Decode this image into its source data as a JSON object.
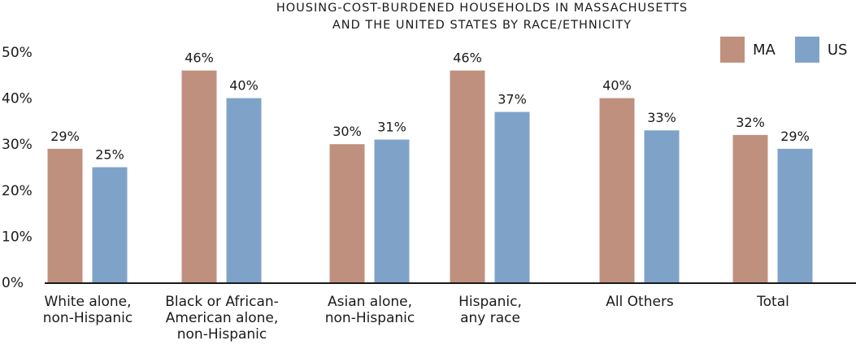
{
  "chart_data": {
    "type": "bar",
    "title_lines": [
      "HOUSING-COST-BURDENED HOUSEHOLDS IN MASSACHUSETTS",
      "AND THE UNITED STATES BY RACE/ETHNICITY"
    ],
    "categories": [
      [
        "White alone,",
        "non-Hispanic"
      ],
      [
        "Black or African-",
        "American alone,",
        "non-Hispanic"
      ],
      [
        "Asian alone,",
        "non-Hispanic"
      ],
      [
        "Hispanic,",
        "any race"
      ],
      [
        "All Others"
      ],
      [
        "Total"
      ]
    ],
    "series": [
      {
        "name": "MA",
        "color": "#c0907f",
        "values": [
          29,
          46,
          30,
          46,
          40,
          32
        ]
      },
      {
        "name": "US",
        "color": "#7fa3c8",
        "values": [
          25,
          40,
          31,
          37,
          33,
          29
        ]
      }
    ],
    "data_label_suffix": "%",
    "ylim": [
      0,
      50
    ],
    "yticks": [
      "0%",
      "10%",
      "20%",
      "30%",
      "40%",
      "50%"
    ],
    "grid": false,
    "legend_position": "top-right"
  }
}
